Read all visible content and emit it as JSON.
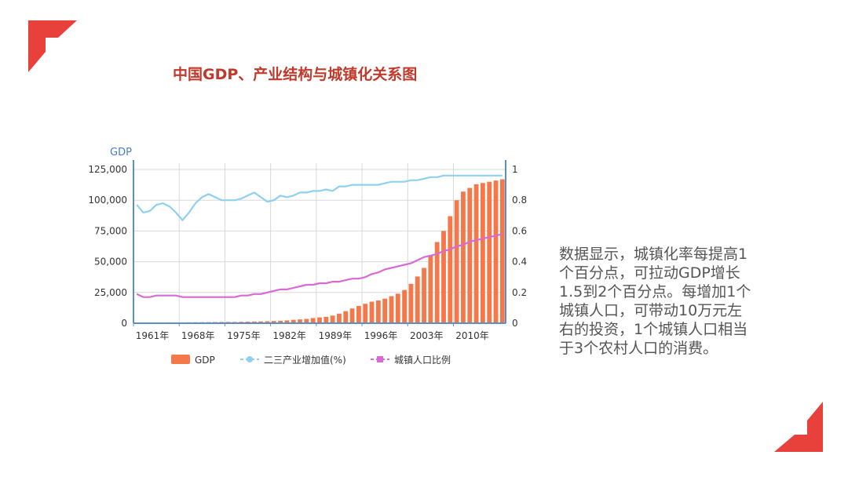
{
  "colors": {
    "accent": "#e8403b",
    "title": "#c0392b",
    "gdp": "#f4794a",
    "industry": "#8fd0f0",
    "urban": "#d86ad6"
  },
  "title": "中国GDP、产业结构与城镇化关系图",
  "description": "数据显示，城镇化率每提高1个百分点，可拉动GDP增长1.5到2个百分点。每增加1个城镇人口，可带动10万元左右的投资，1个城镇人口相当于3个农村人口的消费。",
  "chart_data": {
    "type": "bar",
    "ylabel": "GDP",
    "x": [
      1961,
      1962,
      1963,
      1964,
      1965,
      1966,
      1967,
      1968,
      1969,
      1970,
      1971,
      1972,
      1973,
      1974,
      1975,
      1976,
      1977,
      1978,
      1979,
      1980,
      1981,
      1982,
      1983,
      1984,
      1985,
      1986,
      1987,
      1988,
      1989,
      1990,
      1991,
      1992,
      1993,
      1994,
      1995,
      1996,
      1997,
      1998,
      1999,
      2000,
      2001,
      2002,
      2003,
      2004,
      2005,
      2006,
      2007,
      2008,
      2009,
      2010,
      2011,
      2012,
      2013,
      2014,
      2015,
      2016,
      2017
    ],
    "x_ticks": [
      "1961年",
      "1968年",
      "1975年",
      "1982年",
      "1989年",
      "1996年",
      "2003年",
      "2010年"
    ],
    "y_left": {
      "ticks": [
        "0",
        "25,000",
        "50,000",
        "75,000",
        "100,000",
        "125,000"
      ],
      "range": [
        0,
        125000
      ]
    },
    "y_right": {
      "ticks": [
        "0",
        "0.2",
        "0.4",
        "0.6",
        "0.8",
        "1"
      ],
      "range": [
        0,
        1
      ]
    },
    "legend": [
      "GDP",
      "二三产业增加值(%)",
      "城镇人口比例"
    ],
    "series": [
      {
        "name": "GDP",
        "type": "bar",
        "axis": "left",
        "values": [
          400,
          450,
          500,
          550,
          650,
          700,
          680,
          650,
          740,
          800,
          850,
          900,
          950,
          1000,
          1050,
          1050,
          1150,
          1300,
          1400,
          1500,
          1600,
          1800,
          2000,
          2300,
          2800,
          3100,
          3500,
          4200,
          4700,
          5200,
          6200,
          7800,
          9800,
          12000,
          14000,
          15800,
          17500,
          18500,
          20000,
          22000,
          24000,
          27000,
          32000,
          38000,
          45000,
          55000,
          66000,
          75000,
          87000,
          100000,
          107000,
          110000,
          113000,
          114000,
          115000,
          116000,
          117000
        ]
      },
      {
        "name": "二三产业增加值(%)",
        "type": "line",
        "axis": "right",
        "values": [
          0.77,
          0.72,
          0.73,
          0.77,
          0.78,
          0.76,
          0.72,
          0.67,
          0.72,
          0.78,
          0.82,
          0.84,
          0.82,
          0.8,
          0.8,
          0.8,
          0.81,
          0.83,
          0.85,
          0.82,
          0.79,
          0.8,
          0.83,
          0.82,
          0.83,
          0.85,
          0.85,
          0.86,
          0.86,
          0.87,
          0.86,
          0.89,
          0.89,
          0.9,
          0.9,
          0.9,
          0.9,
          0.9,
          0.91,
          0.92,
          0.92,
          0.92,
          0.93,
          0.93,
          0.94,
          0.95,
          0.95,
          0.96,
          0.96,
          0.96,
          0.96,
          0.96,
          0.96,
          0.96,
          0.96,
          0.96,
          0.96
        ]
      },
      {
        "name": "城镇人口比例",
        "type": "line",
        "axis": "right",
        "values": [
          0.19,
          0.17,
          0.17,
          0.18,
          0.18,
          0.18,
          0.18,
          0.17,
          0.17,
          0.17,
          0.17,
          0.17,
          0.17,
          0.17,
          0.17,
          0.17,
          0.18,
          0.18,
          0.19,
          0.19,
          0.2,
          0.21,
          0.22,
          0.22,
          0.23,
          0.24,
          0.25,
          0.25,
          0.26,
          0.26,
          0.27,
          0.27,
          0.28,
          0.29,
          0.29,
          0.3,
          0.32,
          0.33,
          0.35,
          0.36,
          0.37,
          0.38,
          0.39,
          0.41,
          0.43,
          0.44,
          0.45,
          0.47,
          0.48,
          0.5,
          0.51,
          0.53,
          0.54,
          0.55,
          0.56,
          0.57,
          0.58
        ]
      }
    ]
  }
}
